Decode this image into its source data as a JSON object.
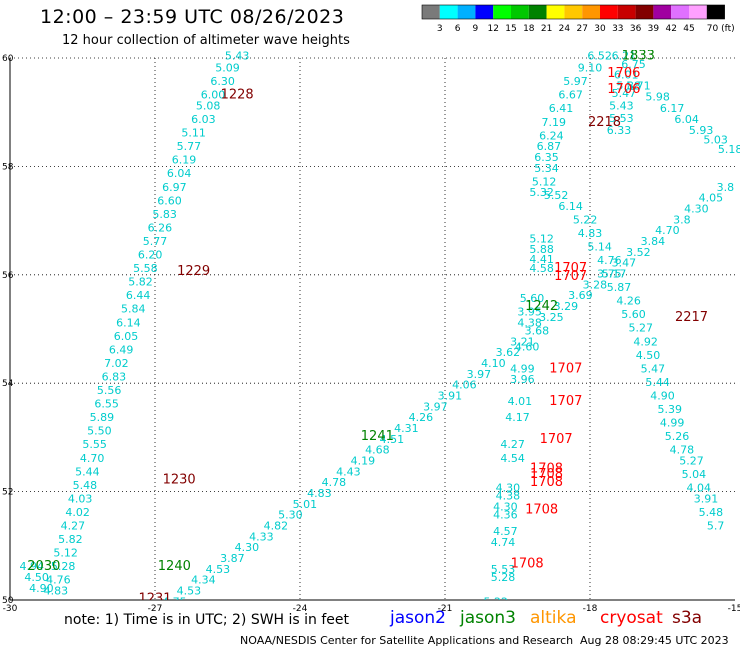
{
  "header": {
    "title": "12:00 – 23:59 UTC 08/26/2023",
    "subtitle": "12 hour collection of altimeter wave heights"
  },
  "colorbar": {
    "labels": [
      "3",
      "6",
      "9",
      "12",
      "15",
      "18",
      "21",
      "24",
      "27",
      "30",
      "33",
      "36",
      "39",
      "42",
      "45",
      "70 (ft)"
    ],
    "colors": [
      "#7a7a7a",
      "#00ffff",
      "#00b0ff",
      "#0000ff",
      "#00ff00",
      "#00c800",
      "#008200",
      "#ffff00",
      "#ffc800",
      "#ff9600",
      "#ff0000",
      "#c80000",
      "#820000",
      "#a000a0",
      "#e070ff",
      "#ffa0ff",
      "#000000"
    ]
  },
  "footer": {
    "note": "note: 1) Time is in UTC; 2) SWH is in feet",
    "credit": "NOAA/NESDIS Center for Satellite Applications and Research",
    "timestamp": "Aug 28 08:29:45 UTC 2023",
    "satellites": [
      {
        "name": "jason2",
        "color": "#0000ff"
      },
      {
        "name": "jason3",
        "color": "#008200"
      },
      {
        "name": "altika",
        "color": "#ff9600"
      },
      {
        "name": "cryosat",
        "color": "#ff0000"
      },
      {
        "name": "s3a",
        "color": "#820000"
      }
    ]
  },
  "chart_data": {
    "type": "scatter",
    "title": "12:00 – 23:59 UTC 08/26/2023",
    "subtitle": "12 hour collection of altimeter wave heights",
    "xlim": [
      -30,
      -15
    ],
    "ylim": [
      50,
      60
    ],
    "xticks": [
      -30,
      -27,
      -24,
      -21,
      -18,
      -15
    ],
    "yticks": [
      50,
      52,
      54,
      56,
      58,
      60
    ],
    "grid": true,
    "value_color": "#00cccc",
    "points": [
      {
        "x": -25.3,
        "y": 59.97,
        "v": "5.43"
      },
      {
        "x": -25.5,
        "y": 59.75,
        "v": "5.09"
      },
      {
        "x": -25.6,
        "y": 59.5,
        "v": "6.30"
      },
      {
        "x": -25.8,
        "y": 59.25,
        "v": "6.00"
      },
      {
        "x": -25.9,
        "y": 59.05,
        "v": "5.08"
      },
      {
        "x": -26.0,
        "y": 58.8,
        "v": "6.03"
      },
      {
        "x": -26.2,
        "y": 58.55,
        "v": "5.11"
      },
      {
        "x": -26.3,
        "y": 58.3,
        "v": "5.77"
      },
      {
        "x": -26.4,
        "y": 58.05,
        "v": "6.19"
      },
      {
        "x": -26.5,
        "y": 57.8,
        "v": "6.04"
      },
      {
        "x": -26.6,
        "y": 57.55,
        "v": "6.97"
      },
      {
        "x": -26.7,
        "y": 57.3,
        "v": "6.60"
      },
      {
        "x": -26.8,
        "y": 57.05,
        "v": "5.83"
      },
      {
        "x": -26.9,
        "y": 56.8,
        "v": "6.26"
      },
      {
        "x": -27.0,
        "y": 56.55,
        "v": "5.77"
      },
      {
        "x": -27.1,
        "y": 56.3,
        "v": "6.20"
      },
      {
        "x": -27.2,
        "y": 56.05,
        "v": "5.58"
      },
      {
        "x": -27.3,
        "y": 55.8,
        "v": "5.82"
      },
      {
        "x": -27.35,
        "y": 55.55,
        "v": "6.44"
      },
      {
        "x": -27.45,
        "y": 55.3,
        "v": "5.84"
      },
      {
        "x": -27.55,
        "y": 55.05,
        "v": "6.14"
      },
      {
        "x": -27.6,
        "y": 54.8,
        "v": "6.05"
      },
      {
        "x": -27.7,
        "y": 54.55,
        "v": "6.49"
      },
      {
        "x": -27.8,
        "y": 54.3,
        "v": "7.02"
      },
      {
        "x": -27.85,
        "y": 54.05,
        "v": "6.83"
      },
      {
        "x": -27.95,
        "y": 53.8,
        "v": "5.56"
      },
      {
        "x": -28.0,
        "y": 53.55,
        "v": "6.55"
      },
      {
        "x": -28.1,
        "y": 53.3,
        "v": "5.89"
      },
      {
        "x": -28.15,
        "y": 53.05,
        "v": "5.50"
      },
      {
        "x": -28.25,
        "y": 52.8,
        "v": "5.55"
      },
      {
        "x": -28.3,
        "y": 52.55,
        "v": "4.70"
      },
      {
        "x": -28.4,
        "y": 52.3,
        "v": "5.44"
      },
      {
        "x": -28.45,
        "y": 52.05,
        "v": "5.48"
      },
      {
        "x": -28.55,
        "y": 51.8,
        "v": "4.03"
      },
      {
        "x": -28.6,
        "y": 51.55,
        "v": "4.02"
      },
      {
        "x": -28.7,
        "y": 51.3,
        "v": "4.27"
      },
      {
        "x": -28.75,
        "y": 51.05,
        "v": "5.82"
      },
      {
        "x": -28.85,
        "y": 50.8,
        "v": "5.12"
      },
      {
        "x": -28.9,
        "y": 50.55,
        "v": "5.28"
      },
      {
        "x": -29.0,
        "y": 50.3,
        "v": "4.76"
      },
      {
        "x": -29.05,
        "y": 50.1,
        "v": "4.83"
      },
      {
        "x": -29.1,
        "y": 49.85,
        "v": "4.85"
      },
      {
        "x": -29.2,
        "y": 49.6,
        "v": "5.83"
      },
      {
        "x": -29.25,
        "y": 49.35,
        "v": "4.11"
      },
      {
        "x": -29.3,
        "y": 49.15,
        "v": "4.00"
      },
      {
        "x": -17.3,
        "y": 59.97,
        "v": "6.21"
      },
      {
        "x": -17.1,
        "y": 59.82,
        "v": "6.75"
      },
      {
        "x": -17.25,
        "y": 59.62,
        "v": "6.01"
      },
      {
        "x": -17.2,
        "y": 59.42,
        "v": "5.88"
      },
      {
        "x": -17.3,
        "y": 59.28,
        "v": "5.47"
      },
      {
        "x": -17.35,
        "y": 59.05,
        "v": "5.43"
      },
      {
        "x": -17.35,
        "y": 58.82,
        "v": "5.53"
      },
      {
        "x": -17.4,
        "y": 58.6,
        "v": "6.33"
      },
      {
        "x": -17.8,
        "y": 59.97,
        "v": "6.52"
      },
      {
        "x": -18.0,
        "y": 59.75,
        "v": "9.10"
      },
      {
        "x": -18.3,
        "y": 59.5,
        "v": "5.97"
      },
      {
        "x": -18.4,
        "y": 59.25,
        "v": "6.67"
      },
      {
        "x": -18.6,
        "y": 59.0,
        "v": "6.41"
      },
      {
        "x": -18.75,
        "y": 58.75,
        "v": "7.19"
      },
      {
        "x": -18.8,
        "y": 58.5,
        "v": "6.24"
      },
      {
        "x": -18.85,
        "y": 58.3,
        "v": "6.87"
      },
      {
        "x": -18.9,
        "y": 58.1,
        "v": "6.35"
      },
      {
        "x": -18.9,
        "y": 57.9,
        "v": "5.34"
      },
      {
        "x": -18.95,
        "y": 57.65,
        "v": "5.12"
      },
      {
        "x": -19.0,
        "y": 57.45,
        "v": "5.32"
      },
      {
        "x": -18.7,
        "y": 57.4,
        "v": "5.52"
      },
      {
        "x": -18.4,
        "y": 57.2,
        "v": "6.14"
      },
      {
        "x": -18.1,
        "y": 56.95,
        "v": "5.22"
      },
      {
        "x": -18.0,
        "y": 56.7,
        "v": "4.83"
      },
      {
        "x": -17.8,
        "y": 56.45,
        "v": "5.14"
      },
      {
        "x": -17.6,
        "y": 56.2,
        "v": "4.76"
      },
      {
        "x": -17.5,
        "y": 55.95,
        "v": "5.17"
      },
      {
        "x": -17.4,
        "y": 55.7,
        "v": "5.87"
      },
      {
        "x": -17.2,
        "y": 55.45,
        "v": "4.26"
      },
      {
        "x": -17.1,
        "y": 55.2,
        "v": "5.60"
      },
      {
        "x": -16.95,
        "y": 54.95,
        "v": "5.27"
      },
      {
        "x": -16.85,
        "y": 54.7,
        "v": "4.92"
      },
      {
        "x": -16.8,
        "y": 54.45,
        "v": "4.50"
      },
      {
        "x": -16.7,
        "y": 54.2,
        "v": "5.47"
      },
      {
        "x": -16.6,
        "y": 53.95,
        "v": "5.44"
      },
      {
        "x": -16.5,
        "y": 53.7,
        "v": "4.90"
      },
      {
        "x": -16.35,
        "y": 53.45,
        "v": "5.39"
      },
      {
        "x": -16.3,
        "y": 53.2,
        "v": "4.99"
      },
      {
        "x": -16.2,
        "y": 52.95,
        "v": "5.26"
      },
      {
        "x": -16.1,
        "y": 52.7,
        "v": "4.78"
      },
      {
        "x": -15.9,
        "y": 52.5,
        "v": "5.27"
      },
      {
        "x": -15.85,
        "y": 52.25,
        "v": "5.04"
      },
      {
        "x": -15.75,
        "y": 52.0,
        "v": "4.04"
      },
      {
        "x": -15.6,
        "y": 51.8,
        "v": "3.91"
      },
      {
        "x": -15.5,
        "y": 51.55,
        "v": "5.48"
      },
      {
        "x": -15.4,
        "y": 51.3,
        "v": "5.7"
      },
      {
        "x": -17.0,
        "y": 59.42,
        "v": "5.71"
      },
      {
        "x": -16.6,
        "y": 59.22,
        "v": "5.98"
      },
      {
        "x": -16.3,
        "y": 59.0,
        "v": "6.17"
      },
      {
        "x": -16.0,
        "y": 58.8,
        "v": "6.04"
      },
      {
        "x": -15.7,
        "y": 58.6,
        "v": "5.93"
      },
      {
        "x": -15.4,
        "y": 58.42,
        "v": "5.03"
      },
      {
        "x": -15.1,
        "y": 58.25,
        "v": "5.18"
      },
      {
        "x": -19.0,
        "y": 56.6,
        "v": "5.12"
      },
      {
        "x": -19.0,
        "y": 56.4,
        "v": "5.88"
      },
      {
        "x": -19.0,
        "y": 56.22,
        "v": "4.41"
      },
      {
        "x": -19.0,
        "y": 56.05,
        "v": "4.58"
      },
      {
        "x": -19.2,
        "y": 55.5,
        "v": "5.60"
      },
      {
        "x": -19.25,
        "y": 55.25,
        "v": "3.95"
      },
      {
        "x": -19.25,
        "y": 55.05,
        "v": "4.38"
      },
      {
        "x": -19.3,
        "y": 54.6,
        "v": "4.60"
      },
      {
        "x": -19.4,
        "y": 54.2,
        "v": "4.99"
      },
      {
        "x": -19.4,
        "y": 54.0,
        "v": "3.96"
      },
      {
        "x": -19.45,
        "y": 53.6,
        "v": "4.01"
      },
      {
        "x": -19.5,
        "y": 53.3,
        "v": "4.17"
      },
      {
        "x": -19.6,
        "y": 52.8,
        "v": "4.27"
      },
      {
        "x": -19.6,
        "y": 52.55,
        "v": "4.54"
      },
      {
        "x": -19.7,
        "y": 52.0,
        "v": "4.30"
      },
      {
        "x": -19.7,
        "y": 51.85,
        "v": "4.38"
      },
      {
        "x": -19.75,
        "y": 51.65,
        "v": "4.30"
      },
      {
        "x": -19.75,
        "y": 51.5,
        "v": "4.36"
      },
      {
        "x": -19.75,
        "y": 51.2,
        "v": "4.57"
      },
      {
        "x": -19.8,
        "y": 51.0,
        "v": "4.74"
      },
      {
        "x": -19.8,
        "y": 50.5,
        "v": "5.53"
      },
      {
        "x": -19.8,
        "y": 50.35,
        "v": "5.28"
      },
      {
        "x": -19.95,
        "y": 49.9,
        "v": "5.22"
      },
      {
        "x": -19.9,
        "y": 49.65,
        "v": "4.80"
      },
      {
        "x": -19.9,
        "y": 49.55,
        "v": "4.99"
      },
      {
        "x": -19.95,
        "y": 49.2,
        "v": "5.06"
      },
      {
        "x": -15.2,
        "y": 57.55,
        "v": "3.8"
      },
      {
        "x": -15.5,
        "y": 57.35,
        "v": "4.05"
      },
      {
        "x": -15.8,
        "y": 57.15,
        "v": "4.30"
      },
      {
        "x": -16.1,
        "y": 56.95,
        "v": "3.8"
      },
      {
        "x": -16.4,
        "y": 56.75,
        "v": "4.70"
      },
      {
        "x": -16.7,
        "y": 56.55,
        "v": "3.84"
      },
      {
        "x": -17.0,
        "y": 56.35,
        "v": "3.52"
      },
      {
        "x": -17.3,
        "y": 56.15,
        "v": "3.47"
      },
      {
        "x": -17.6,
        "y": 55.95,
        "v": "3.75"
      },
      {
        "x": -17.9,
        "y": 55.75,
        "v": "3.28"
      },
      {
        "x": -18.2,
        "y": 55.55,
        "v": "3.69"
      },
      {
        "x": -18.5,
        "y": 55.35,
        "v": "3.29"
      },
      {
        "x": -18.8,
        "y": 55.15,
        "v": "3.25"
      },
      {
        "x": -19.1,
        "y": 54.9,
        "v": "3.68"
      },
      {
        "x": -19.4,
        "y": 54.7,
        "v": "3.21"
      },
      {
        "x": -19.7,
        "y": 54.5,
        "v": "3.62"
      },
      {
        "x": -20.0,
        "y": 54.3,
        "v": "4.10"
      },
      {
        "x": -20.3,
        "y": 54.1,
        "v": "3.97"
      },
      {
        "x": -20.6,
        "y": 53.9,
        "v": "4.06"
      },
      {
        "x": -20.9,
        "y": 53.7,
        "v": "3.91"
      },
      {
        "x": -21.2,
        "y": 53.5,
        "v": "3.97"
      },
      {
        "x": -21.5,
        "y": 53.3,
        "v": "4.26"
      },
      {
        "x": -21.8,
        "y": 53.1,
        "v": "4.31"
      },
      {
        "x": -22.1,
        "y": 52.9,
        "v": "4.51"
      },
      {
        "x": -22.4,
        "y": 52.7,
        "v": "4.68"
      },
      {
        "x": -22.7,
        "y": 52.5,
        "v": "4.19"
      },
      {
        "x": -23.0,
        "y": 52.3,
        "v": "4.43"
      },
      {
        "x": -23.3,
        "y": 52.1,
        "v": "4.78"
      },
      {
        "x": -23.6,
        "y": 51.9,
        "v": "4.83"
      },
      {
        "x": -23.9,
        "y": 51.7,
        "v": "5.01"
      },
      {
        "x": -24.2,
        "y": 51.5,
        "v": "5.30"
      },
      {
        "x": -24.5,
        "y": 51.3,
        "v": "4.82"
      },
      {
        "x": -24.8,
        "y": 51.1,
        "v": "4.33"
      },
      {
        "x": -25.1,
        "y": 50.9,
        "v": "4.30"
      },
      {
        "x": -25.4,
        "y": 50.7,
        "v": "3.87"
      },
      {
        "x": -25.7,
        "y": 50.5,
        "v": "4.53"
      },
      {
        "x": -26.0,
        "y": 50.3,
        "v": "4.34"
      },
      {
        "x": -26.3,
        "y": 50.1,
        "v": "4.53"
      },
      {
        "x": -26.6,
        "y": 49.9,
        "v": "4.75"
      },
      {
        "x": -26.9,
        "y": 49.7,
        "v": "3.37"
      },
      {
        "x": -27.2,
        "y": 49.5,
        "v": "4.80"
      },
      {
        "x": -29.55,
        "y": 50.55,
        "v": "4.94"
      },
      {
        "x": -29.45,
        "y": 50.35,
        "v": "4.50"
      },
      {
        "x": -29.35,
        "y": 50.15,
        "v": "4.90"
      }
    ],
    "time_labels": [
      {
        "x": -25.3,
        "y": 59.25,
        "text": "1228",
        "color": "#820000"
      },
      {
        "x": -26.2,
        "y": 56.0,
        "text": "1229",
        "color": "#820000"
      },
      {
        "x": -26.5,
        "y": 52.15,
        "text": "1230",
        "color": "#820000"
      },
      {
        "x": -27.0,
        "y": 49.95,
        "text": "1231",
        "color": "#820000"
      },
      {
        "x": -27.2,
        "y": 49.75,
        "text": "1239",
        "color": "#008200"
      },
      {
        "x": -26.6,
        "y": 50.55,
        "text": "1240",
        "color": "#008200"
      },
      {
        "x": -22.4,
        "y": 52.95,
        "text": "1241",
        "color": "#008200"
      },
      {
        "x": -19.0,
        "y": 55.35,
        "text": "1242",
        "color": "#008200"
      },
      {
        "x": -29.3,
        "y": 50.55,
        "text": "2030",
        "color": "#008200"
      },
      {
        "x": -17.0,
        "y": 59.97,
        "text": "1833",
        "color": "#008200"
      },
      {
        "x": -17.7,
        "y": 58.75,
        "text": "2218",
        "color": "#820000"
      },
      {
        "x": -15.9,
        "y": 55.15,
        "text": "2217",
        "color": "#820000"
      },
      {
        "x": -17.3,
        "y": 59.65,
        "text": "1706",
        "color": "#ff0000"
      },
      {
        "x": -17.3,
        "y": 59.35,
        "text": "1706",
        "color": "#ff0000"
      },
      {
        "x": -18.4,
        "y": 56.05,
        "text": "1707",
        "color": "#ff0000"
      },
      {
        "x": -18.4,
        "y": 55.9,
        "text": "1707",
        "color": "#ff0000"
      },
      {
        "x": -18.5,
        "y": 54.2,
        "text": "1707",
        "color": "#ff0000"
      },
      {
        "x": -18.5,
        "y": 53.6,
        "text": "1707",
        "color": "#ff0000"
      },
      {
        "x": -18.7,
        "y": 52.9,
        "text": "1707",
        "color": "#ff0000"
      },
      {
        "x": -18.9,
        "y": 52.35,
        "text": "1708",
        "color": "#ff0000"
      },
      {
        "x": -18.9,
        "y": 52.25,
        "text": "1708",
        "color": "#ff0000"
      },
      {
        "x": -18.9,
        "y": 52.1,
        "text": "1708",
        "color": "#ff0000"
      },
      {
        "x": -19.0,
        "y": 51.6,
        "text": "1708",
        "color": "#ff0000"
      },
      {
        "x": -19.3,
        "y": 50.6,
        "text": "1708",
        "color": "#ff0000"
      }
    ]
  }
}
